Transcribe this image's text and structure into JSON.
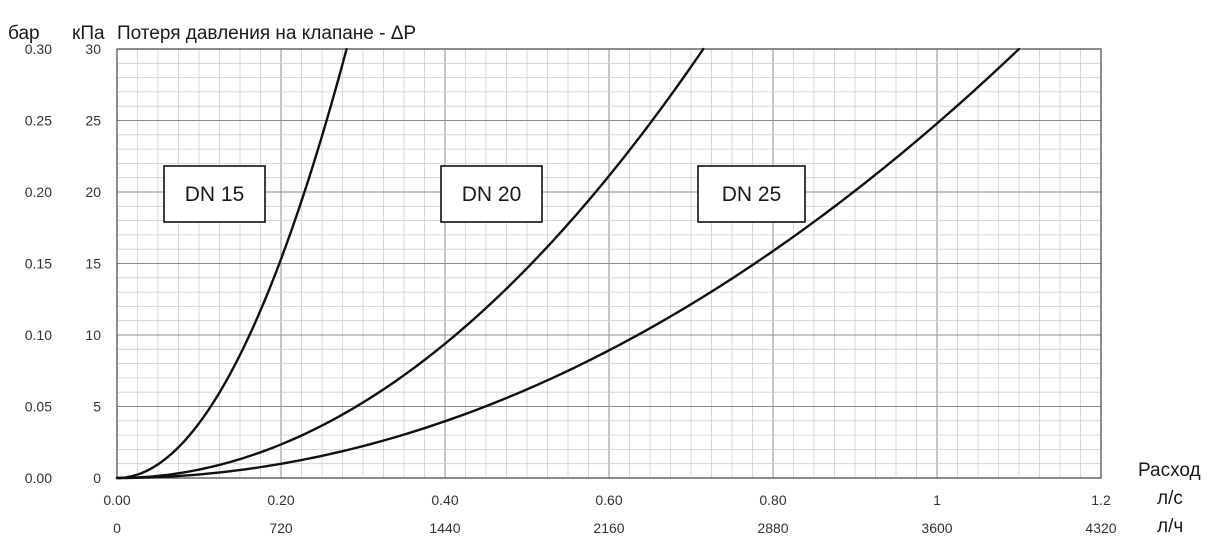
{
  "chart_data": {
    "type": "line",
    "title": "Потеря давления на клапане - ΔP",
    "y_unit_labels": [
      "бар",
      "кПа"
    ],
    "xlabel": "Расход",
    "x_units": [
      "л/с",
      "л/ч"
    ],
    "xlim": [
      0,
      1.2
    ],
    "ylim": [
      0,
      30
    ],
    "grid": true,
    "x_ticks_ls": [
      "0.00",
      "0.20",
      "0.40",
      "0.60",
      "0.80",
      "1",
      "1.2"
    ],
    "x_ticks_lh": [
      "0",
      "720",
      "1440",
      "2160",
      "2880",
      "3600",
      "4320"
    ],
    "y_ticks_kpa": [
      "0",
      "5",
      "10",
      "15",
      "20",
      "25",
      "30"
    ],
    "y_ticks_bar": [
      "0.00",
      "0.05",
      "0.10",
      "0.15",
      "0.20",
      "0.25",
      "0.30"
    ],
    "series": [
      {
        "name": "DN 15",
        "x": [
          0,
          0.05,
          0.1,
          0.15,
          0.2,
          0.25,
          0.28
        ],
        "y": [
          0,
          0.95,
          3.8,
          8.6,
          15.3,
          23.9,
          30
        ]
      },
      {
        "name": "DN 20",
        "x": [
          0,
          0.1,
          0.2,
          0.3,
          0.4,
          0.5,
          0.6,
          0.715
        ],
        "y": [
          0,
          0.59,
          2.35,
          5.3,
          9.4,
          14.7,
          21.1,
          30
        ]
      },
      {
        "name": "DN 25",
        "x": [
          0,
          0.1,
          0.2,
          0.3,
          0.4,
          0.5,
          0.6,
          0.7,
          0.8,
          0.9,
          1.0,
          1.1
        ],
        "y": [
          0,
          0.25,
          0.99,
          2.23,
          3.97,
          6.2,
          8.9,
          12.2,
          15.9,
          20.1,
          24.8,
          30
        ]
      }
    ]
  }
}
